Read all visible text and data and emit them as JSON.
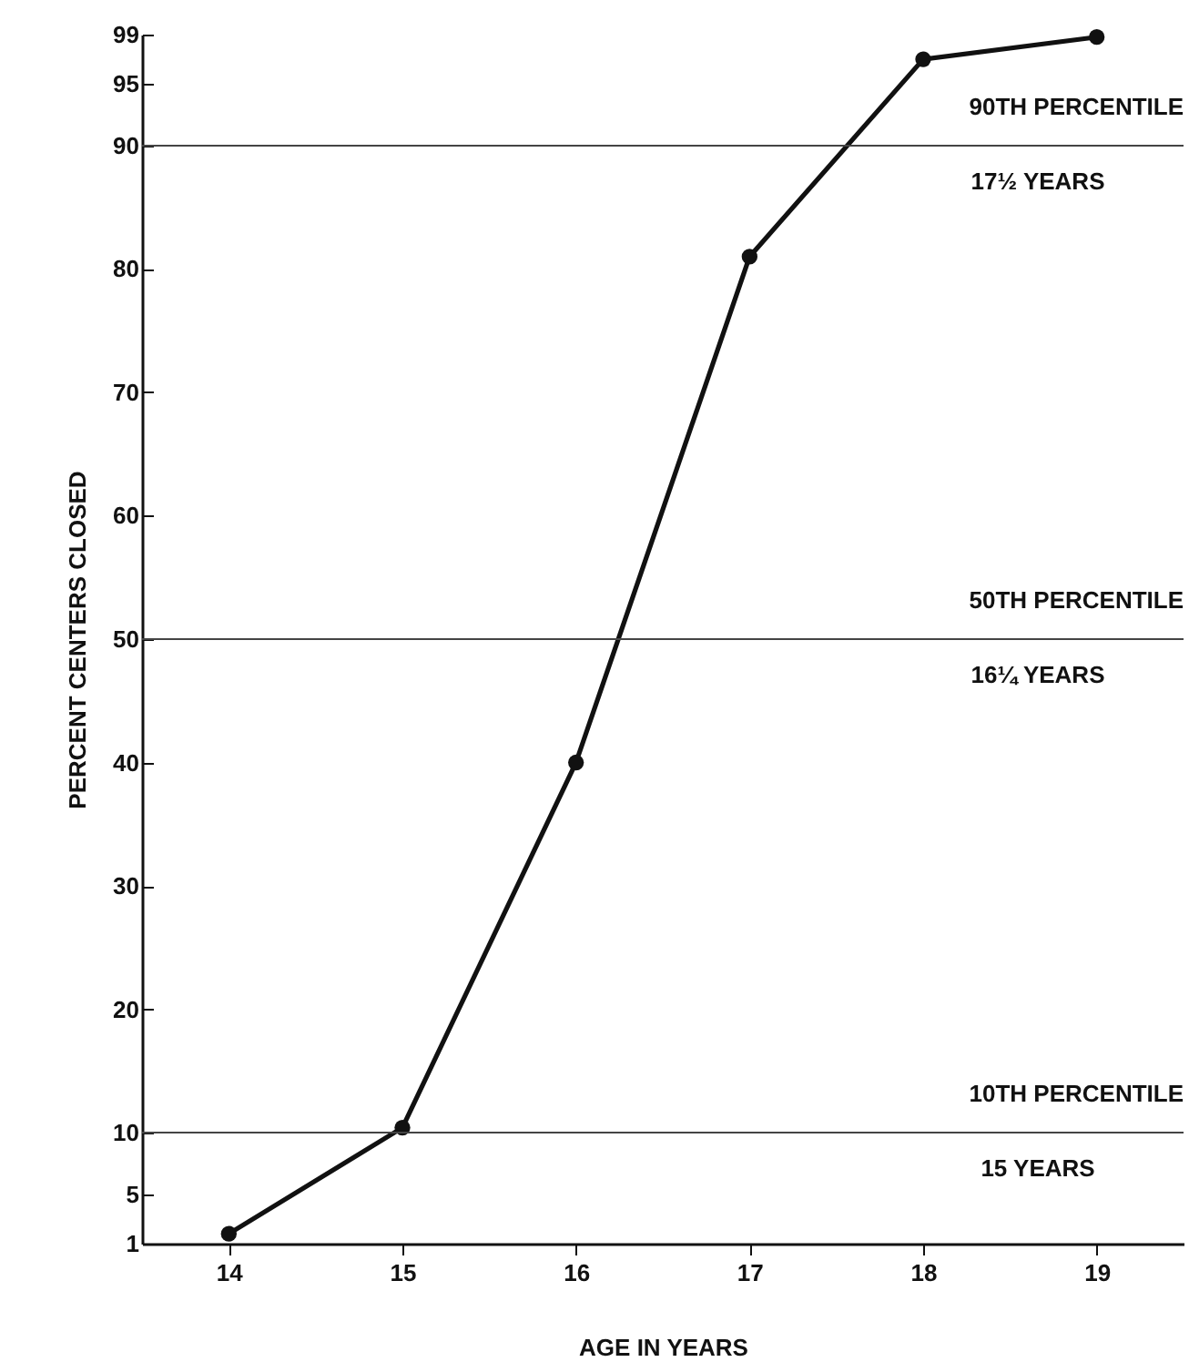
{
  "chart_data": {
    "type": "line",
    "xlabel": "AGE IN YEARS",
    "ylabel": "PERCENT CENTERS CLOSED",
    "x": [
      14,
      15,
      16,
      17,
      18,
      19
    ],
    "series": [
      {
        "color": "#111111",
        "values": [
          1.8,
          10.4,
          40,
          81,
          97,
          98.8
        ]
      }
    ],
    "marker": "circle",
    "line_style": "solid",
    "xlim": [
      13.5,
      19.5
    ],
    "xticks": [
      14,
      15,
      16,
      17,
      18,
      19
    ],
    "ylim": [
      1,
      99
    ],
    "yticks": [
      1,
      5,
      10,
      20,
      30,
      40,
      50,
      60,
      70,
      80,
      90,
      95,
      99
    ],
    "ref_lines": [
      {
        "axis": "y",
        "value": 90,
        "label": "90TH PERCENTILE",
        "color": "#444444"
      },
      {
        "axis": "y",
        "value": 50,
        "label": "50TH PERCENTILE",
        "color": "#444444"
      },
      {
        "axis": "y",
        "value": 10,
        "label": "10TH PERCENTILE",
        "color": "#444444"
      }
    ],
    "annotations": [
      "17½ YEARS",
      "16¼ YEARS",
      "15 YEARS"
    ],
    "grid": false
  }
}
